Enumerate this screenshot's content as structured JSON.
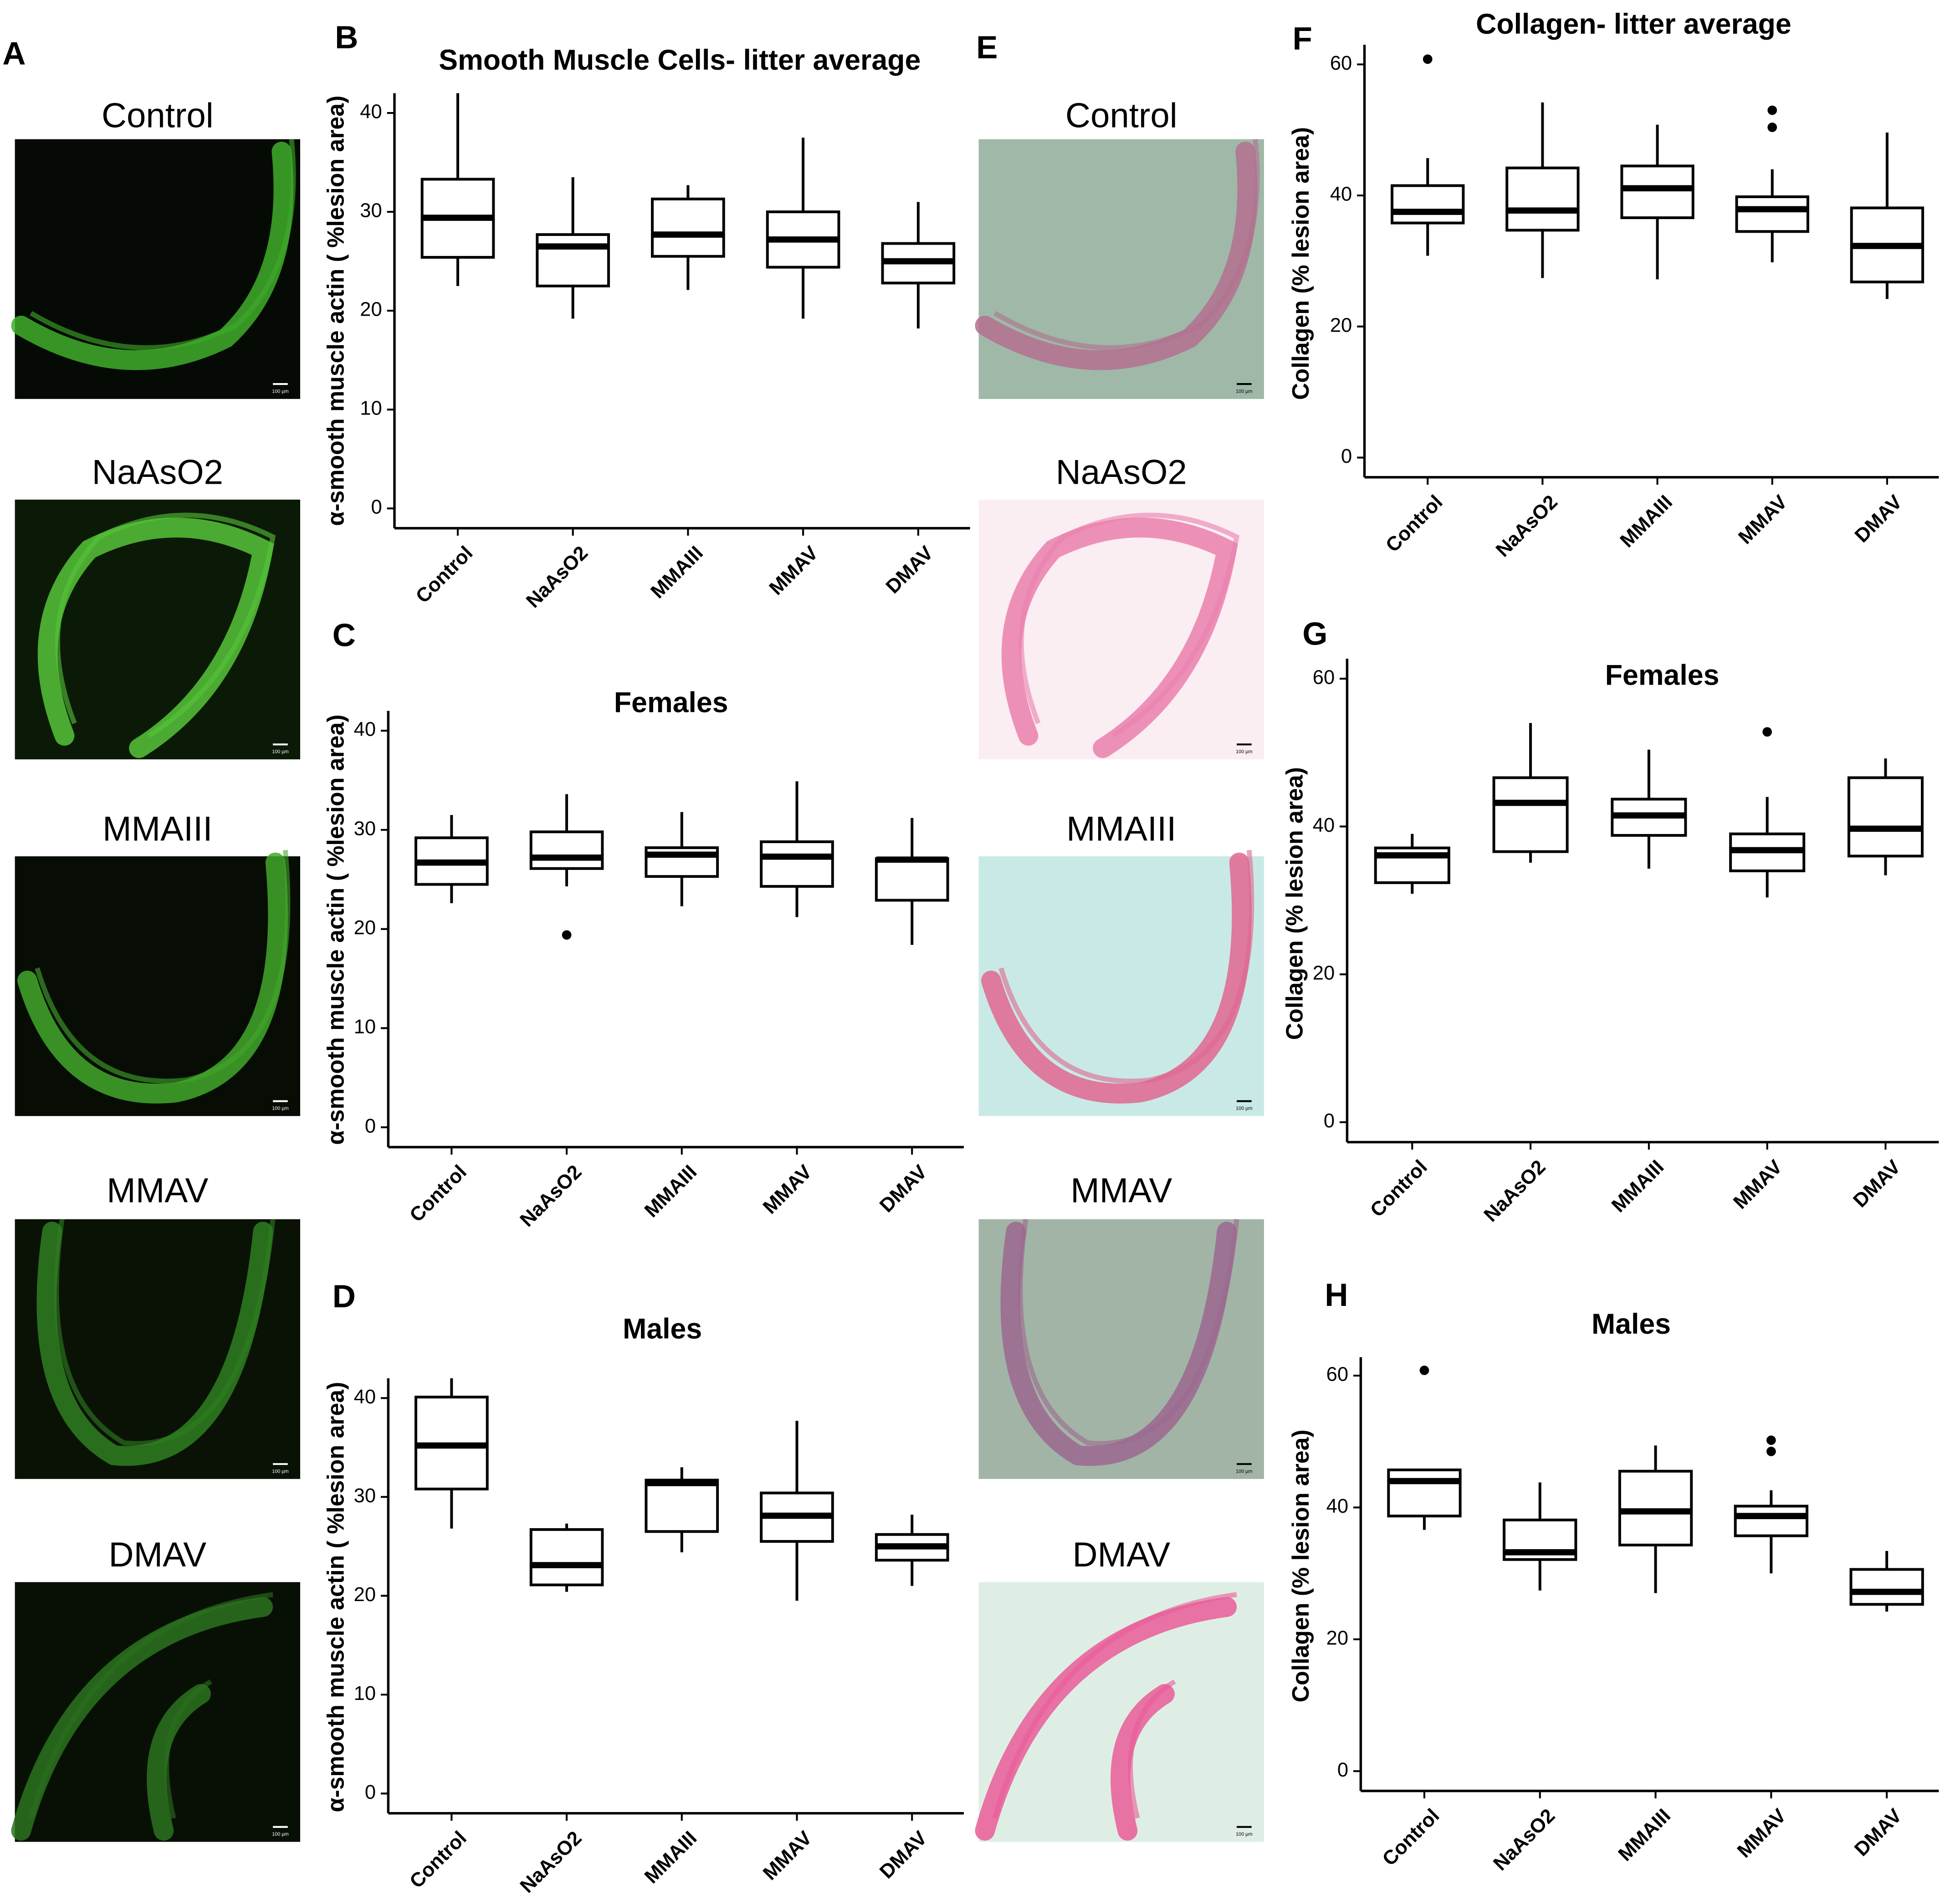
{
  "images": {
    "panel_a": {
      "label": "A",
      "captions": [
        "Control",
        "NaAsO2",
        "MMAIII",
        "MMAV",
        "DMAV"
      ],
      "scale_bar": "100 µm"
    },
    "panel_e": {
      "label": "E",
      "captions": [
        "Control",
        "NaAsO2",
        "MMAIII",
        "MMAV",
        "DMAV"
      ],
      "scale_bar": "100 µm"
    }
  },
  "chart_data": [
    {
      "type": "box",
      "panel_label": "B",
      "title": "Smooth Muscle Cells- litter average",
      "y_label": "α-smooth muscle actin ( %lesion area)",
      "categories": [
        "Control",
        "NaAsO2",
        "MMAIII",
        "MMAV",
        "DMAV"
      ],
      "ylim": [
        -2,
        42
      ],
      "yticks": [
        0,
        10,
        20,
        30,
        40
      ],
      "color": "#000000",
      "min": [
        22.5,
        19.2,
        22.1,
        19.2,
        18.2
      ],
      "q1": [
        25.4,
        22.5,
        25.5,
        24.4,
        22.8
      ],
      "median": [
        29.4,
        26.5,
        27.7,
        27.2,
        25
      ],
      "q3": [
        33.3,
        27.7,
        31.3,
        30,
        26.8
      ],
      "max": [
        42,
        33.5,
        32.7,
        37.5,
        31
      ],
      "outliers": [
        [],
        [],
        [],
        [],
        []
      ]
    },
    {
      "type": "box",
      "panel_label": "C",
      "title": "Females",
      "y_label": "α-smooth muscle actin ( %lesion area)",
      "categories": [
        "Control",
        "NaAsO2",
        "MMAIII",
        "MMAV",
        "DMAV"
      ],
      "ylim": [
        -2,
        42
      ],
      "yticks": [
        0,
        10,
        20,
        30,
        40
      ],
      "color": "#000000",
      "min": [
        22.6,
        24.3,
        22.3,
        21.2,
        18.4
      ],
      "q1": [
        24.5,
        26.1,
        25.3,
        24.3,
        22.9
      ],
      "median": [
        26.7,
        27.2,
        27.5,
        27.3,
        27
      ],
      "q3": [
        29.2,
        29.8,
        28.2,
        28.8,
        27.1
      ],
      "max": [
        31.5,
        33.6,
        31.8,
        34.9,
        31.2
      ],
      "outliers": [
        [],
        [
          19.4
        ],
        [],
        [],
        []
      ]
    },
    {
      "type": "box",
      "panel_label": "D",
      "title": "Males",
      "y_label": "α-smooth muscle actin ( %lesion area)",
      "categories": [
        "Control",
        "NaAsO2",
        "MMAIII",
        "MMAV",
        "DMAV"
      ],
      "ylim": [
        -2,
        42
      ],
      "yticks": [
        0,
        10,
        20,
        30,
        40
      ],
      "color": "#000000",
      "min": [
        26.8,
        20.4,
        24.4,
        19.5,
        21
      ],
      "q1": [
        30.8,
        21.1,
        26.5,
        25.5,
        23.6
      ],
      "median": [
        35.2,
        23.1,
        31.4,
        28.1,
        25
      ],
      "q3": [
        40.1,
        26.7,
        31.7,
        30.4,
        26.2
      ],
      "max": [
        42,
        27.3,
        33,
        37.7,
        28.2
      ],
      "outliers": [
        [],
        [],
        [],
        [],
        []
      ]
    },
    {
      "type": "box",
      "panel_label": "F",
      "title": "Collagen- litter average",
      "y_label": "Collagen (% lesion area)",
      "categories": [
        "Control",
        "NaAsO2",
        "MMAIII",
        "MMAV",
        "DMAV"
      ],
      "ylim": [
        -3,
        63
      ],
      "yticks": [
        0,
        20,
        40,
        60
      ],
      "color": "#000000",
      "min": [
        30.8,
        27.4,
        27.2,
        29.8,
        24.2
      ],
      "q1": [
        35.8,
        34.7,
        36.6,
        34.5,
        26.8
      ],
      "median": [
        37.5,
        37.7,
        41.1,
        37.9,
        32.3
      ],
      "q3": [
        41.5,
        44.2,
        44.5,
        39.8,
        38.1
      ],
      "max": [
        45.7,
        54.2,
        50.8,
        44,
        49.6
      ],
      "outliers": [
        [
          60.8
        ],
        [],
        [],
        [
          53,
          50.4
        ],
        []
      ]
    },
    {
      "type": "box",
      "panel_label": "G",
      "title": "Females",
      "y_label": "Collagen (% lesion area)",
      "categories": [
        "Control",
        "NaAsO2",
        "MMAIII",
        "MMAV",
        "DMAV"
      ],
      "ylim": [
        -2.7,
        62.7
      ],
      "yticks": [
        0,
        20,
        40,
        60
      ],
      "color": "#000000",
      "min": [
        30.9,
        35.1,
        34.3,
        30.4,
        33.4
      ],
      "q1": [
        32.4,
        36.6,
        38.8,
        34,
        36
      ],
      "median": [
        36.1,
        43.2,
        41.5,
        36.8,
        39.7
      ],
      "q3": [
        37.1,
        46.6,
        43.7,
        39,
        46.6
      ],
      "max": [
        39,
        54,
        50.4,
        44,
        49.2
      ],
      "outliers": [
        [],
        [],
        [],
        [
          52.8
        ],
        []
      ]
    },
    {
      "type": "box",
      "panel_label": "H",
      "title": "Males",
      "y_label": "Collagen (% lesion area)",
      "categories": [
        "Control",
        "NaAsO2",
        "MMAIII",
        "MMAV",
        "DMAV"
      ],
      "ylim": [
        -3,
        62.8
      ],
      "yticks": [
        0,
        20,
        40,
        60
      ],
      "color": "#000000",
      "min": [
        36.6,
        27.4,
        27,
        30,
        24.2
      ],
      "q1": [
        38.7,
        32.1,
        34.3,
        35.7,
        25.3
      ],
      "median": [
        44,
        33.2,
        39.4,
        38.7,
        27.2
      ],
      "q3": [
        45.7,
        38.1,
        45.5,
        40.2,
        30.6
      ],
      "max": [
        45.7,
        43.8,
        49.4,
        42.6,
        33.4
      ],
      "outliers": [
        [
          60.8
        ],
        [],
        [],
        [
          50.2,
          48.5
        ],
        []
      ]
    }
  ]
}
